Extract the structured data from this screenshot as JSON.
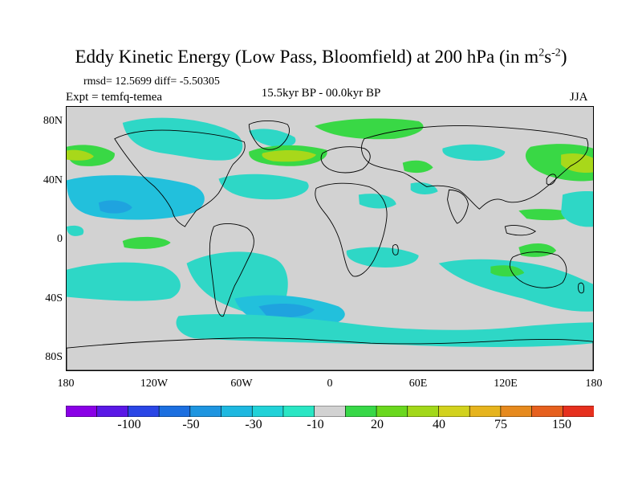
{
  "figure": {
    "title_main": "Eddy Kinetic Energy (Low Pass, Bloomfield) at 200 hPa (in m",
    "title_sup1": "2",
    "title_mid": "s",
    "title_sup2": "-2",
    "title_end": ")",
    "stats": "rmsd= 12.5699 diff= -5.50305",
    "experiment": "Expt = temfq-temea",
    "period": "15.5kyr BP - 00.0kyr BP",
    "season": "JJA"
  },
  "axes": {
    "lat_labels": [
      "80N",
      "40N",
      "0",
      "40S",
      "80S"
    ],
    "lon_labels": [
      "180",
      "120W",
      "60W",
      "0",
      "60E",
      "120E",
      "180"
    ]
  },
  "colorbar": {
    "colors": [
      "#8a00e6",
      "#5a18e6",
      "#2a46e6",
      "#1c6fe0",
      "#1e95e0",
      "#1eb8e0",
      "#22d2d8",
      "#2ae6c4",
      "#d2d2d2",
      "#38d848",
      "#6ad81e",
      "#a2d81a",
      "#d2d21e",
      "#e6b41e",
      "#e68a1e",
      "#e6601e",
      "#e6301e"
    ],
    "labels": [
      "-100",
      "-50",
      "-30",
      "-10",
      "20",
      "40",
      "75",
      "150"
    ]
  },
  "map_style": {
    "background": "#d2d2d2",
    "cyan": "#2ed7c6",
    "light_blue": "#22c0dc",
    "blue": "#1fa3df",
    "green": "#39d845",
    "yellow_green": "#a8d81a",
    "coast": "#000000"
  }
}
